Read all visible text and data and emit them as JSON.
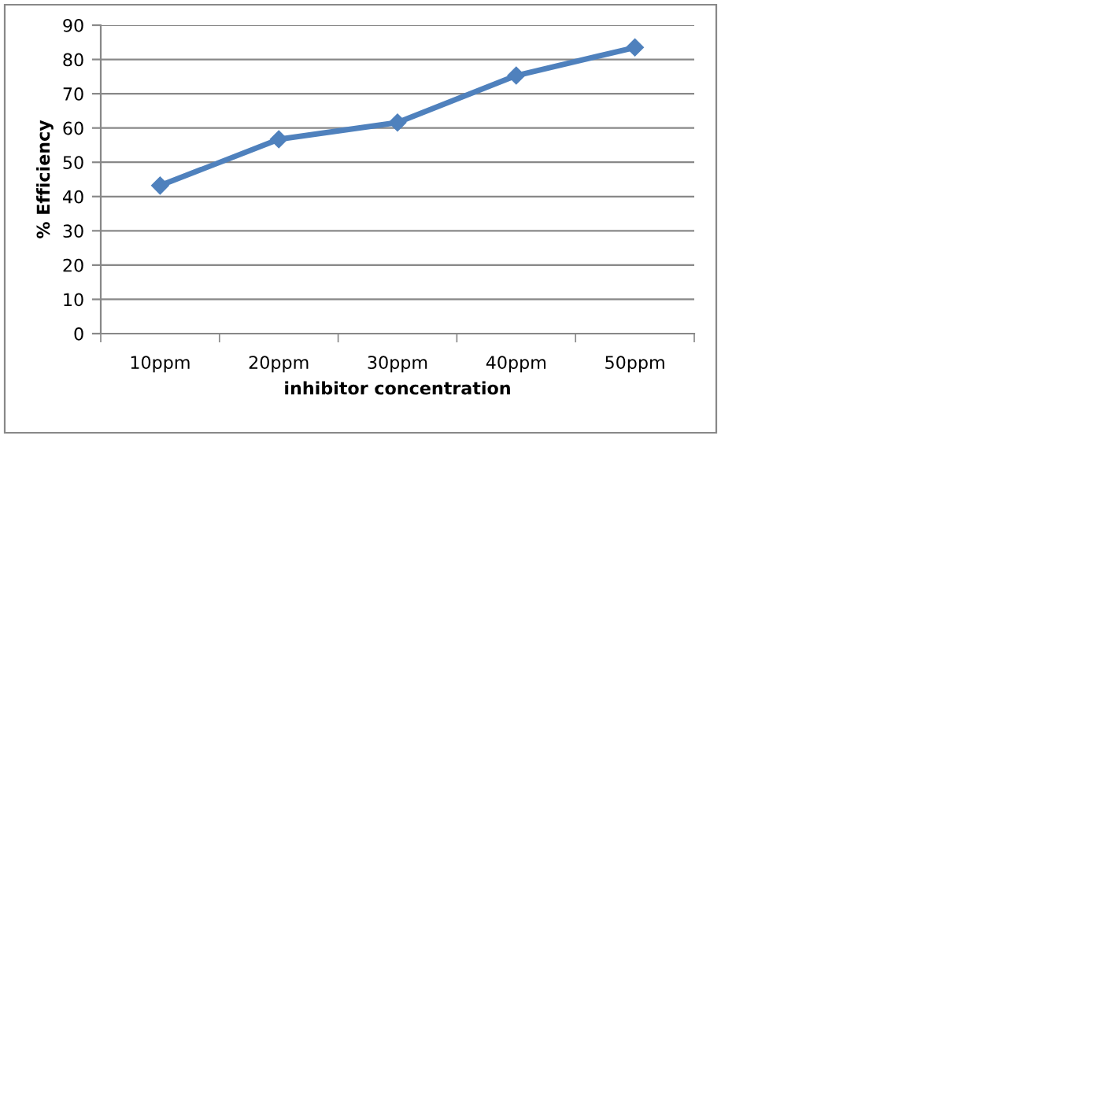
{
  "chart_data": {
    "type": "line",
    "xlabel": "inhibitor concentration",
    "ylabel": "% Efficiency",
    "categories": [
      "10ppm",
      "20ppm",
      "30ppm",
      "40ppm",
      "50ppm"
    ],
    "series": [
      {
        "color": "#4f81bd",
        "values": [
          43.2,
          56.7,
          61.6,
          75.3,
          83.5
        ]
      }
    ],
    "ylim": [
      0,
      90
    ],
    "yticks": [
      0,
      10,
      20,
      30,
      40,
      50,
      60,
      70,
      80,
      90
    ],
    "grid": "y",
    "marker": "diamond",
    "line_style": "solid"
  }
}
